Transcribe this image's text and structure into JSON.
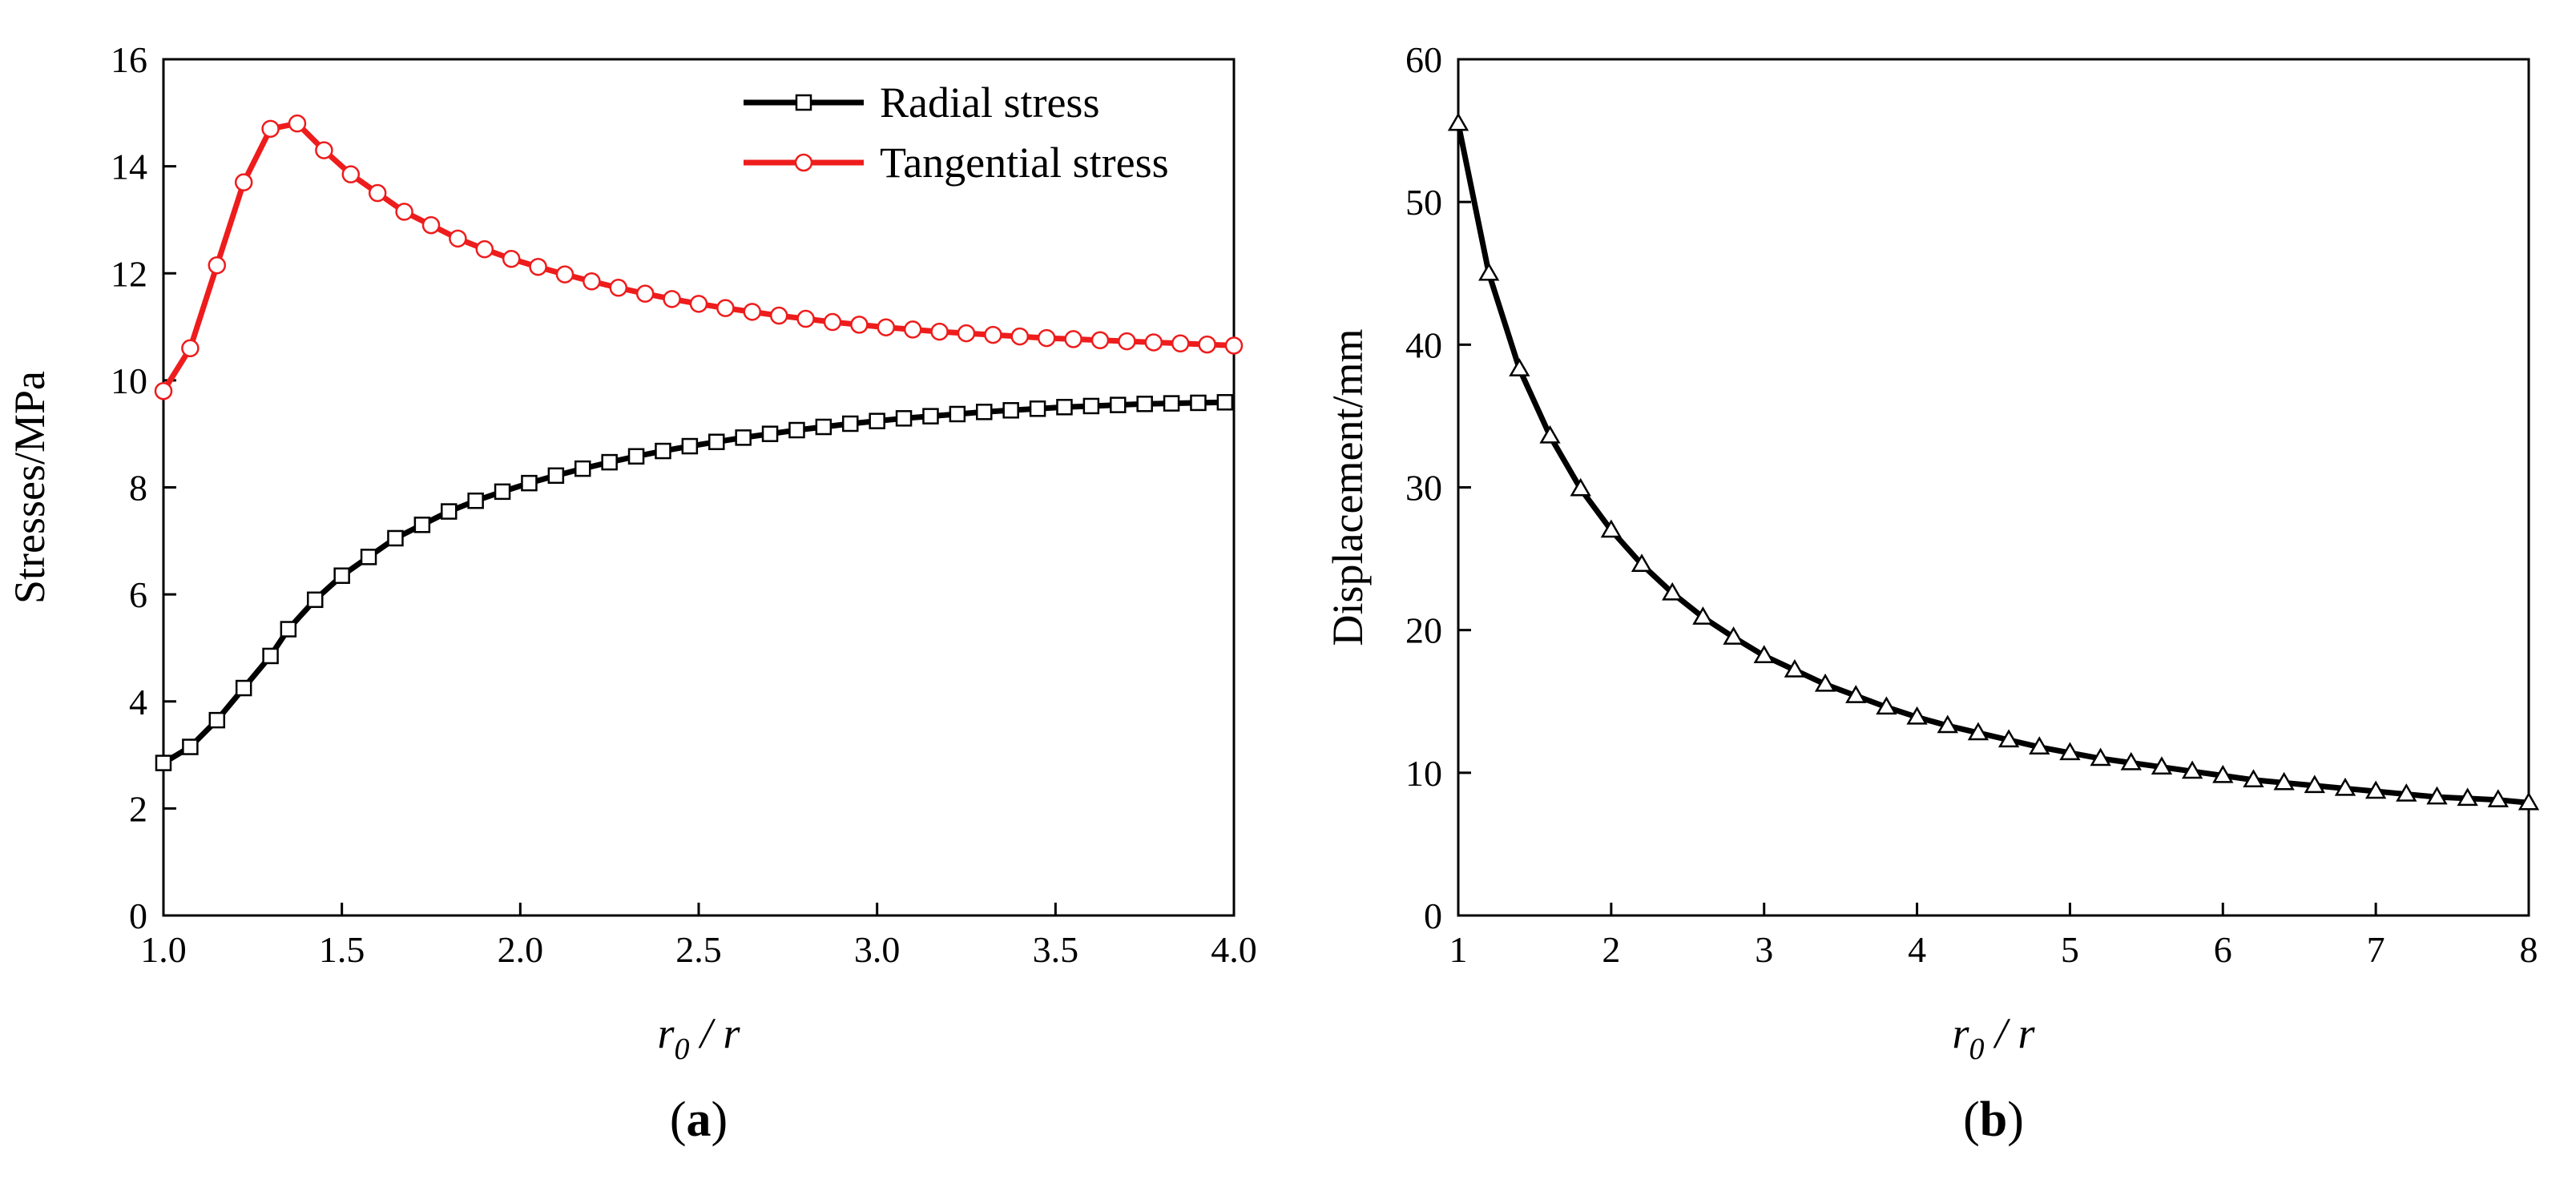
{
  "chart_data": [
    {
      "type": "line",
      "panel_label": {
        "prefix": "(",
        "letter": "a",
        "suffix": ")"
      },
      "xlabel": {
        "main": "r",
        "sub": "0",
        "rest": " / r"
      },
      "ylabel": "Stresses/MPa",
      "xlim": [
        1.0,
        4.0
      ],
      "ylim": [
        0,
        16
      ],
      "xticks": [
        1.0,
        1.5,
        2.0,
        2.5,
        3.0,
        3.5,
        4.0
      ],
      "yticks": [
        0,
        2,
        4,
        6,
        8,
        10,
        12,
        14,
        16
      ],
      "xtick_decimals": 1,
      "grid": false,
      "legend_position": "top-right",
      "series": [
        {
          "name": "Radial stress",
          "color": "#000000",
          "marker": "square",
          "x": [
            1.0,
            1.075,
            1.15,
            1.225,
            1.3,
            1.35,
            1.425,
            1.5,
            1.575,
            1.65,
            1.725,
            1.8,
            1.875,
            1.95,
            2.025,
            2.1,
            2.175,
            2.25,
            2.325,
            2.4,
            2.475,
            2.55,
            2.625,
            2.7,
            2.775,
            2.85,
            2.925,
            3.0,
            3.075,
            3.15,
            3.225,
            3.3,
            3.375,
            3.45,
            3.525,
            3.6,
            3.675,
            3.75,
            3.825,
            3.9,
            3.975
          ],
          "y": [
            2.85,
            3.15,
            3.65,
            4.25,
            4.85,
            5.35,
            5.9,
            6.35,
            6.7,
            7.05,
            7.3,
            7.55,
            7.75,
            7.92,
            8.08,
            8.22,
            8.35,
            8.47,
            8.58,
            8.68,
            8.77,
            8.85,
            8.93,
            9.0,
            9.07,
            9.13,
            9.19,
            9.24,
            9.29,
            9.33,
            9.37,
            9.41,
            9.44,
            9.47,
            9.5,
            9.52,
            9.54,
            9.56,
            9.57,
            9.58,
            9.59
          ]
        },
        {
          "name": "Tangential stress",
          "color": "#ee1c1c",
          "marker": "circle",
          "x": [
            1.0,
            1.075,
            1.15,
            1.225,
            1.3,
            1.375,
            1.45,
            1.525,
            1.6,
            1.675,
            1.75,
            1.825,
            1.9,
            1.975,
            2.05,
            2.125,
            2.2,
            2.275,
            2.35,
            2.425,
            2.5,
            2.575,
            2.65,
            2.725,
            2.8,
            2.875,
            2.95,
            3.025,
            3.1,
            3.175,
            3.25,
            3.325,
            3.4,
            3.475,
            3.55,
            3.625,
            3.7,
            3.775,
            3.85,
            3.925,
            4.0
          ],
          "y": [
            9.8,
            10.6,
            12.15,
            13.7,
            14.7,
            14.8,
            14.3,
            13.85,
            13.5,
            13.15,
            12.9,
            12.65,
            12.45,
            12.27,
            12.12,
            11.98,
            11.85,
            11.73,
            11.62,
            11.52,
            11.43,
            11.35,
            11.28,
            11.21,
            11.15,
            11.09,
            11.04,
            10.99,
            10.95,
            10.91,
            10.88,
            10.85,
            10.82,
            10.79,
            10.77,
            10.75,
            10.73,
            10.71,
            10.69,
            10.67,
            10.65
          ]
        }
      ]
    },
    {
      "type": "line",
      "panel_label": {
        "prefix": "(",
        "letter": "b",
        "suffix": ")"
      },
      "xlabel": {
        "main": "r",
        "sub": "0",
        "rest": " / r"
      },
      "ylabel": "Displacement/mm",
      "xlim": [
        1,
        8
      ],
      "ylim": [
        0,
        60
      ],
      "xticks": [
        1,
        2,
        3,
        4,
        5,
        6,
        7,
        8
      ],
      "yticks": [
        0,
        10,
        20,
        30,
        40,
        50,
        60
      ],
      "xtick_decimals": 0,
      "grid": false,
      "legend_position": "none",
      "series": [
        {
          "name": "Displacement",
          "color": "#000000",
          "marker": "triangle",
          "x": [
            1.0,
            1.2,
            1.4,
            1.6,
            1.8,
            2.0,
            2.2,
            2.4,
            2.6,
            2.8,
            3.0,
            3.2,
            3.4,
            3.6,
            3.8,
            4.0,
            4.2,
            4.4,
            4.6,
            4.8,
            5.0,
            5.2,
            5.4,
            5.6,
            5.8,
            6.0,
            6.2,
            6.4,
            6.6,
            6.8,
            7.0,
            7.2,
            7.4,
            7.6,
            7.8,
            8.0
          ],
          "y": [
            55.5,
            45.0,
            38.3,
            33.6,
            29.9,
            27.0,
            24.6,
            22.6,
            20.9,
            19.5,
            18.2,
            17.2,
            16.2,
            15.4,
            14.6,
            13.9,
            13.3,
            12.8,
            12.3,
            11.8,
            11.4,
            11.0,
            10.7,
            10.4,
            10.1,
            9.8,
            9.5,
            9.3,
            9.1,
            8.9,
            8.7,
            8.5,
            8.3,
            8.2,
            8.1,
            7.9
          ]
        }
      ]
    }
  ]
}
